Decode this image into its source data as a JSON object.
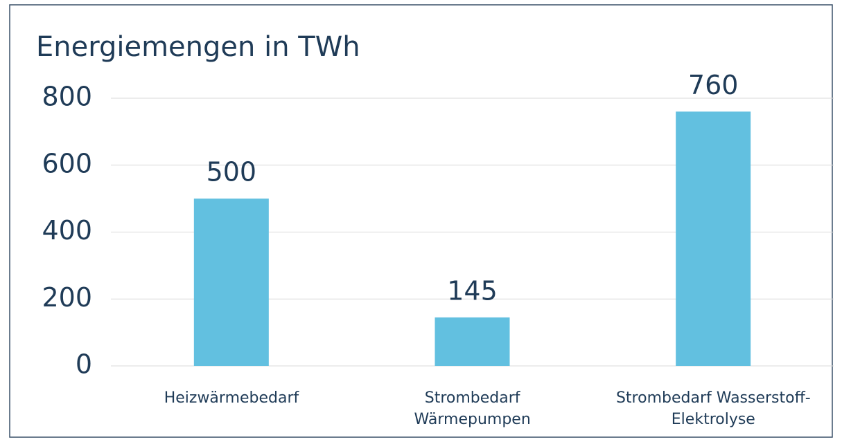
{
  "chart_data": {
    "type": "bar",
    "title": "Energiemengen in TWh",
    "categories": [
      "Heizwärmebedarf",
      "Strombedarf\nWärmepumpen",
      "Strombedarf Wasserstoff-\nElektrolyse"
    ],
    "values": [
      500,
      145,
      760
    ],
    "color": "#62c0e0",
    "ylim": [
      0,
      800
    ],
    "yticks": [
      0,
      200,
      400,
      600,
      800
    ],
    "grid": true
  }
}
